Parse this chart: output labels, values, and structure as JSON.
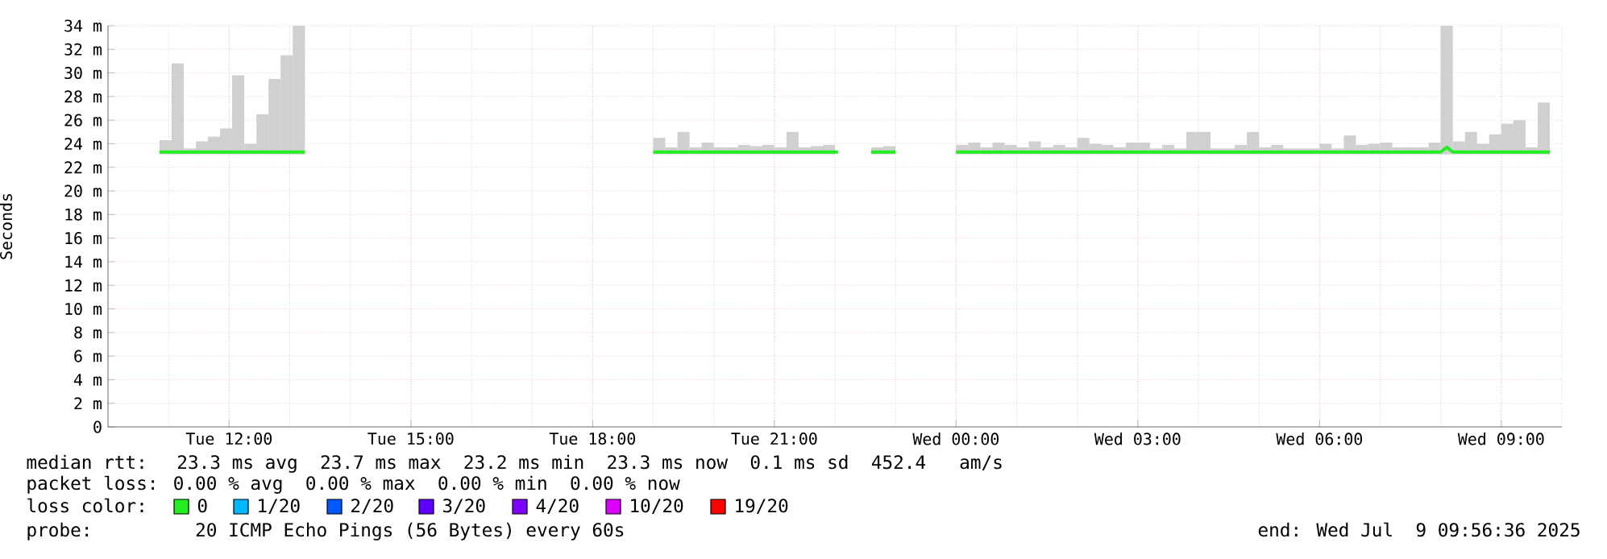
{
  "chart_data": {
    "type": "line",
    "ylabel": "Seconds",
    "xlim": [
      "2025-07-08T10:00",
      "2025-07-09T10:00"
    ],
    "ylim": [
      0,
      34
    ],
    "xticks": [
      {
        "value": "2025-07-08T12:00",
        "label": "Tue 12:00"
      },
      {
        "value": "2025-07-08T15:00",
        "label": "Tue 15:00"
      },
      {
        "value": "2025-07-08T18:00",
        "label": "Tue 18:00"
      },
      {
        "value": "2025-07-08T21:00",
        "label": "Tue 21:00"
      },
      {
        "value": "2025-07-09T00:00",
        "label": "Wed 00:00"
      },
      {
        "value": "2025-07-09T03:00",
        "label": "Wed 03:00"
      },
      {
        "value": "2025-07-09T06:00",
        "label": "Wed 06:00"
      },
      {
        "value": "2025-07-09T09:00",
        "label": "Wed 09:00"
      }
    ],
    "yticks": [
      {
        "value": 0,
        "label": "0"
      },
      {
        "value": 2,
        "label": "2 m"
      },
      {
        "value": 4,
        "label": "4 m"
      },
      {
        "value": 6,
        "label": "6 m"
      },
      {
        "value": 8,
        "label": "8 m"
      },
      {
        "value": 10,
        "label": "10 m"
      },
      {
        "value": 12,
        "label": "12 m"
      },
      {
        "value": 14,
        "label": "14 m"
      },
      {
        "value": 16,
        "label": "16 m"
      },
      {
        "value": 18,
        "label": "18 m"
      },
      {
        "value": 20,
        "label": "20 m"
      },
      {
        "value": 22,
        "label": "22 m"
      },
      {
        "value": 24,
        "label": "24 m"
      },
      {
        "value": 26,
        "label": "26 m"
      },
      {
        "value": 28,
        "label": "28 m"
      },
      {
        "value": 30,
        "label": "30 m"
      },
      {
        "value": 32,
        "label": "32 m"
      },
      {
        "value": 34,
        "label": "34 m"
      }
    ],
    "grid": true,
    "series": [
      {
        "type": "bar",
        "color": "#d0d0d0",
        "x": [
          "2025-07-08T10:57",
          "2025-07-08T11:09",
          "2025-07-08T11:21",
          "2025-07-08T11:33",
          "2025-07-08T11:45",
          "2025-07-08T11:57",
          "2025-07-08T12:09",
          "2025-07-08T12:21",
          "2025-07-08T12:33",
          "2025-07-08T12:45",
          "2025-07-08T12:57",
          "2025-07-08T13:09",
          "2025-07-08T19:06",
          "2025-07-08T19:18",
          "2025-07-08T19:30",
          "2025-07-08T19:42",
          "2025-07-08T19:54",
          "2025-07-08T20:06",
          "2025-07-08T20:18",
          "2025-07-08T20:30",
          "2025-07-08T20:42",
          "2025-07-08T20:54",
          "2025-07-08T21:06",
          "2025-07-08T21:18",
          "2025-07-08T21:30",
          "2025-07-08T21:42",
          "2025-07-08T21:54",
          "2025-07-08T22:42",
          "2025-07-08T22:54",
          "2025-07-09T00:06",
          "2025-07-09T00:18",
          "2025-07-09T00:30",
          "2025-07-09T00:42",
          "2025-07-09T00:54",
          "2025-07-09T01:06",
          "2025-07-09T01:18",
          "2025-07-09T01:30",
          "2025-07-09T01:42",
          "2025-07-09T01:54",
          "2025-07-09T02:06",
          "2025-07-09T02:18",
          "2025-07-09T02:30",
          "2025-07-09T02:42",
          "2025-07-09T02:54",
          "2025-07-09T03:06",
          "2025-07-09T03:18",
          "2025-07-09T03:30",
          "2025-07-09T03:42",
          "2025-07-09T03:54",
          "2025-07-09T04:06",
          "2025-07-09T04:18",
          "2025-07-09T04:30",
          "2025-07-09T04:42",
          "2025-07-09T04:54",
          "2025-07-09T05:06",
          "2025-07-09T05:18",
          "2025-07-09T05:30",
          "2025-07-09T05:42",
          "2025-07-09T05:54",
          "2025-07-09T06:06",
          "2025-07-09T06:18",
          "2025-07-09T06:30",
          "2025-07-09T06:42",
          "2025-07-09T06:54",
          "2025-07-09T07:06",
          "2025-07-09T07:18",
          "2025-07-09T07:30",
          "2025-07-09T07:42",
          "2025-07-09T07:54",
          "2025-07-09T08:06",
          "2025-07-09T08:18",
          "2025-07-09T08:30",
          "2025-07-09T08:42",
          "2025-07-09T08:54",
          "2025-07-09T09:06",
          "2025-07-09T09:18",
          "2025-07-09T09:30",
          "2025-07-09T09:42"
        ],
        "base": [
          23.1,
          23.1,
          23.1,
          23.1,
          23.1,
          23.1,
          23.1,
          23.1,
          23.1,
          23.1,
          23.1,
          23.1,
          23.1,
          23.1,
          23.1,
          23.1,
          23.1,
          23.1,
          23.1,
          23.1,
          23.1,
          23.1,
          23.1,
          23.1,
          23.1,
          23.1,
          23.1,
          23.1,
          23.1,
          23.1,
          23.1,
          23.1,
          23.1,
          23.1,
          23.1,
          23.1,
          23.1,
          23.1,
          23.1,
          23.1,
          23.1,
          23.1,
          23.1,
          23.1,
          23.1,
          23.1,
          23.1,
          23.1,
          23.1,
          23.1,
          23.1,
          23.1,
          23.1,
          23.1,
          23.1,
          23.1,
          23.1,
          23.1,
          23.1,
          23.1,
          23.1,
          23.1,
          23.1,
          23.1,
          23.1,
          23.1,
          23.1,
          23.1,
          23.1,
          23.1,
          23.1,
          23.1,
          23.1,
          23.1,
          23.1,
          23.1,
          23.1,
          23.1
        ],
        "values": [
          1.2,
          7.7,
          0.5,
          1.1,
          1.5,
          2.2,
          6.7,
          0.9,
          3.4,
          6.4,
          8.4,
          10.9,
          1.4,
          0.6,
          1.9,
          0.6,
          1.0,
          0.6,
          0.6,
          0.8,
          0.7,
          0.8,
          0.6,
          1.9,
          0.6,
          0.7,
          0.8,
          0.6,
          0.7,
          0.8,
          1.0,
          0.6,
          1.0,
          0.8,
          0.6,
          1.1,
          0.6,
          0.8,
          0.6,
          1.4,
          0.9,
          0.8,
          0.6,
          1.0,
          1.0,
          0.5,
          0.8,
          0.5,
          1.9,
          1.9,
          0.5,
          0.5,
          0.8,
          1.9,
          0.6,
          0.8,
          0.5,
          0.5,
          0.5,
          0.9,
          0.5,
          1.6,
          0.8,
          0.9,
          1.0,
          0.6,
          0.6,
          0.6,
          1.0,
          10.9,
          1.1,
          1.9,
          0.9,
          1.7,
          2.6,
          2.9,
          0.6,
          4.4
        ]
      },
      {
        "color": "#22ee22",
        "x": [
          "2025-07-08T10:51",
          "2025-07-08T13:15",
          "2025-07-08T16:00",
          "2025-07-08T19:00",
          "2025-07-08T22:03",
          "2025-07-08T22:18",
          "2025-07-08T22:36",
          "2025-07-08T23:00",
          "2025-07-08T23:30",
          "2025-07-09T00:00",
          "2025-07-09T08:00",
          "2025-07-09T08:06",
          "2025-07-09T08:12",
          "2025-07-09T09:48"
        ],
        "values": [
          23.3,
          23.3,
          null,
          23.3,
          23.3,
          null,
          23.3,
          23.3,
          null,
          23.3,
          23.3,
          23.7,
          23.3,
          23.3
        ]
      }
    ],
    "annotations": [
      "median rtt:  23.3 ms avg  23.7 ms max  23.2 ms min  23.3 ms now  0.1 ms sd  452.4   am/s",
      "packet loss: 0.00 % avg  0.00 % max  0.00 % min  0.00 % now",
      "loss color:",
      "0",
      "1/20",
      "2/20",
      "3/20",
      "4/20",
      "10/20",
      "19/20",
      "probe:       20 ICMP Echo Pings (56 Bytes) every 60s",
      "end: Wed Jul  9 09:56:36 2025"
    ]
  }
}
